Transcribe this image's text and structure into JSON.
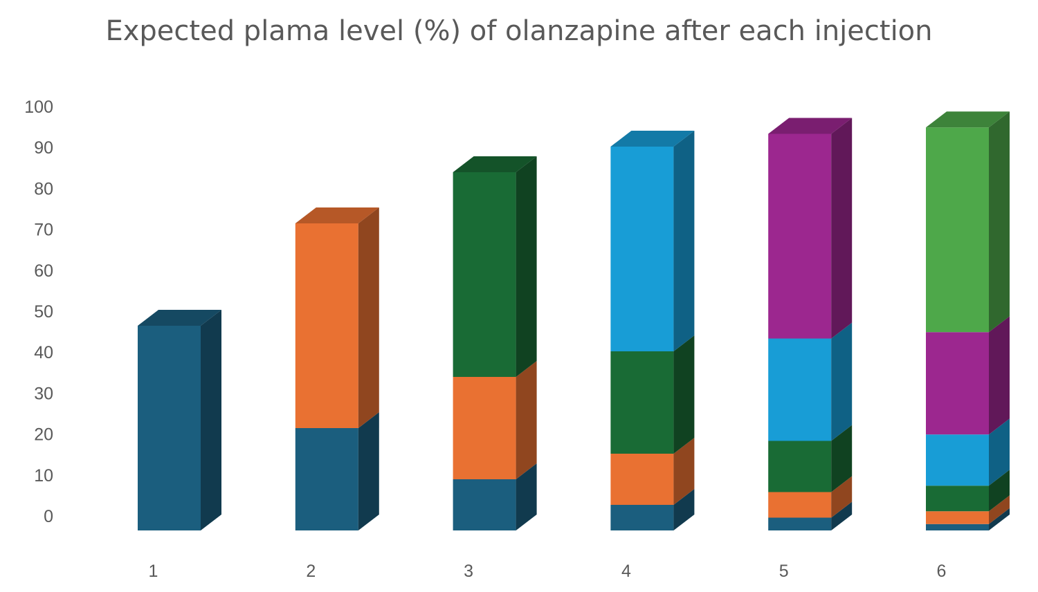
{
  "chart_data": {
    "type": "bar",
    "stacked": true,
    "style": "3d-column",
    "title": "Expected plama level (%) of olanzapine after each injection",
    "categories": [
      "1",
      "2",
      "3",
      "4",
      "5",
      "6"
    ],
    "ylim": [
      0,
      100
    ],
    "yticks": [
      0,
      10,
      20,
      30,
      40,
      50,
      60,
      70,
      80,
      90,
      100
    ],
    "grid": false,
    "legend": "none",
    "series": [
      {
        "color": "#1b5e7e",
        "values": [
          50,
          25,
          12.5,
          6.25,
          3.125,
          1.5625
        ]
      },
      {
        "color": "#e97132",
        "values": [
          0,
          50,
          25,
          12.5,
          6.25,
          3.125
        ]
      },
      {
        "color": "#196b35",
        "values": [
          0,
          0,
          50,
          25,
          12.5,
          6.25
        ]
      },
      {
        "color": "#189dd6",
        "values": [
          0,
          0,
          0,
          50,
          25,
          12.5
        ]
      },
      {
        "color": "#9c278f",
        "values": [
          0,
          0,
          0,
          0,
          50,
          25
        ]
      },
      {
        "color": "#4ea84a",
        "values": [
          0,
          0,
          0,
          0,
          0,
          50
        ]
      }
    ]
  }
}
